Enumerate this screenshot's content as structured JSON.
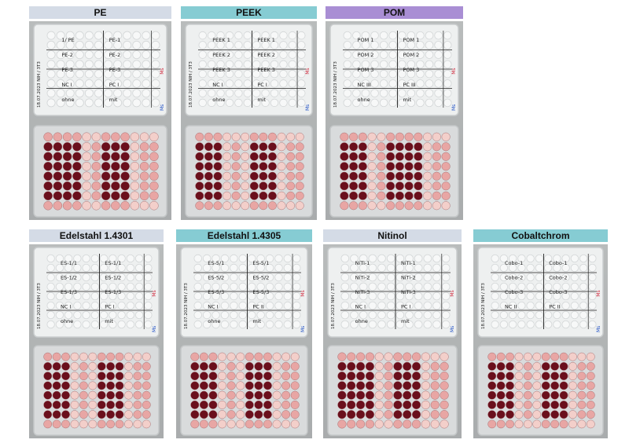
{
  "colors": {
    "label_gray": "#d4dbe6",
    "label_teal": "#86ccd3",
    "label_violet": "#a98ed4",
    "well_dark": "#6a0f1c",
    "well_pink": "#e8a6a4",
    "well_light": "#f3cfca",
    "plate_clear": "#eef0f0",
    "photo_bg": "#b1b4b5"
  },
  "panels": [
    {
      "id": "pe",
      "title": "PE",
      "label_color": "label_gray",
      "ink_rows": [
        [
          "1/ PE",
          "PE-1"
        ],
        [
          "PE-2",
          "PE-2"
        ],
        [
          "PE-3",
          "PE-3"
        ],
        [
          "NC I",
          "PC I"
        ],
        [
          "ohne",
          "mit"
        ]
      ],
      "side_text": "18.07.2023 NIH / 3T3",
      "red_text": "Ms",
      "blue_text": "Ms",
      "col_pattern": [
        "D",
        "D",
        "D",
        "D",
        "L",
        "P",
        "D",
        "D",
        "D",
        "L",
        "P",
        "P"
      ]
    },
    {
      "id": "peek",
      "title": "PEEK",
      "label_color": "label_teal",
      "ink_rows": [
        [
          "PEEK 1",
          "PEEK 1"
        ],
        [
          "PEEK 2",
          "PEEK 2"
        ],
        [
          "PEEK 3",
          "PEEK 3"
        ],
        [
          "NC I",
          "PC I"
        ],
        [
          "ohne",
          "mit"
        ]
      ],
      "side_text": "18.07.2023 NIH / 3T3",
      "red_text": "Ms",
      "blue_text": "Ms",
      "col_pattern": [
        "D",
        "D",
        "D",
        "L",
        "P",
        "L",
        "D",
        "D",
        "D",
        "L",
        "P",
        "P"
      ]
    },
    {
      "id": "pom",
      "title": "POM",
      "label_color": "label_violet",
      "ink_rows": [
        [
          "POM 1",
          "POM 1"
        ],
        [
          "POM 2",
          "POM 2"
        ],
        [
          "POM 3",
          "POM 3"
        ],
        [
          "NC III",
          "PC III"
        ],
        [
          "ohne",
          "mit"
        ]
      ],
      "side_text": "18.07.2023 NIH / 3T3",
      "red_text": "Ms",
      "blue_text": "Ms",
      "col_pattern": [
        "D",
        "D",
        "D",
        "L",
        "P",
        "D",
        "D",
        "D",
        "D",
        "L",
        "P",
        "P"
      ]
    },
    {
      "id": "edelstahl-1-4301",
      "title": "Edelstahl 1.4301",
      "label_color": "label_gray",
      "ink_rows": [
        [
          "ES-1/1",
          "ES-1/1"
        ],
        [
          "ES-1/2",
          "ES-1/2"
        ],
        [
          "ES-1/3",
          "ES-1/3"
        ],
        [
          "NC I",
          "PC I"
        ],
        [
          "ohne",
          "mit"
        ]
      ],
      "side_text": "18.07.2023 NIH / 3T3",
      "red_text": "Ms",
      "blue_text": "Ms",
      "col_pattern": [
        "D",
        "D",
        "D",
        "L",
        "P",
        "L",
        "D",
        "D",
        "D",
        "L",
        "P",
        "P"
      ]
    },
    {
      "id": "edelstahl-1-4305",
      "title": "Edelstahl 1.4305",
      "label_color": "label_teal",
      "ink_rows": [
        [
          "ES-5/1",
          "ES-5/1"
        ],
        [
          "ES-5/2",
          "ES-5/2"
        ],
        [
          "ES-5/3",
          "ES-5/3"
        ],
        [
          "NC I",
          "PC II"
        ],
        [
          "ohne",
          "mit"
        ]
      ],
      "side_text": "18.07.2023 NIH / 3T3",
      "red_text": "Ms",
      "blue_text": "Ms",
      "col_pattern": [
        "D",
        "D",
        "D",
        "L",
        "P",
        "L",
        "D",
        "D",
        "D",
        "L",
        "P",
        "P"
      ]
    },
    {
      "id": "nitinol",
      "title": "Nitinol",
      "label_color": "label_gray",
      "ink_rows": [
        [
          "NiTi-1",
          "NiTi-1"
        ],
        [
          "NiTi-2",
          "NiTi-2"
        ],
        [
          "NiTi-3",
          "NiTi-3"
        ],
        [
          "NC I",
          "PC I"
        ],
        [
          "ohne",
          "mit"
        ]
      ],
      "side_text": "18.07.2023 NIH / 3T3",
      "red_text": "Ms",
      "blue_text": "Ms",
      "col_pattern": [
        "D",
        "D",
        "D",
        "D",
        "L",
        "P",
        "D",
        "D",
        "D",
        "L",
        "P",
        "P"
      ]
    },
    {
      "id": "cobaltchrom",
      "title": "Cobaltchrom",
      "label_color": "label_teal",
      "ink_rows": [
        [
          "Cobo-1",
          "Cobo-1"
        ],
        [
          "Cobo-2",
          "Cobo-2"
        ],
        [
          "Cobo-3",
          "Cobo-3"
        ],
        [
          "NC II",
          "PC II"
        ],
        [
          "",
          ""
        ]
      ],
      "side_text": "18.07.2023 NIH / 3T3",
      "red_text": "Ms",
      "blue_text": "Ms",
      "col_pattern": [
        "D",
        "D",
        "D",
        "L",
        "P",
        "L",
        "D",
        "D",
        "D",
        "L",
        "P",
        "P"
      ]
    }
  ]
}
